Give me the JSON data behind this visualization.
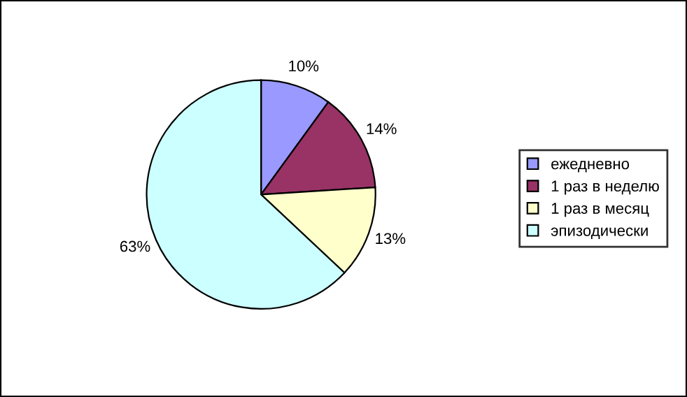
{
  "chart_data": {
    "type": "pie",
    "categories": [
      "ежедневно",
      "1 раз в неделю",
      "1 раз в месяц",
      "эпизодически"
    ],
    "values": [
      10,
      14,
      13,
      63
    ],
    "colors": [
      "#9999ff",
      "#993366",
      "#ffffcc",
      "#ccffff"
    ],
    "value_labels": [
      "10%",
      "14%",
      "13%",
      "63%"
    ],
    "legend": "right"
  }
}
